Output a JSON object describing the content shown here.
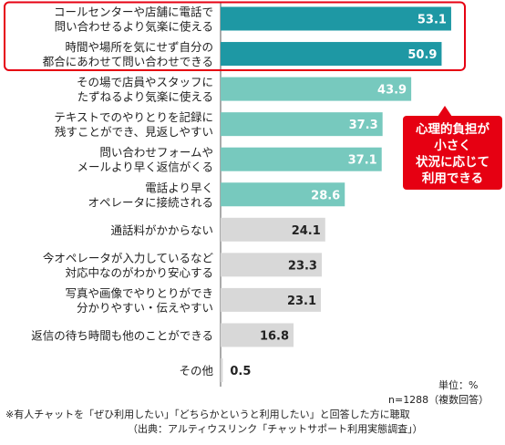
{
  "chart_data": {
    "type": "bar",
    "orientation": "horizontal",
    "categories": [
      [
        "コールセンターや店舗に電話で",
        "問い合わせるより気楽に使える"
      ],
      [
        "時間や場所を気にせず自分の",
        "都合にあわせて問い合わせできる"
      ],
      [
        "その場で店員やスタッフに",
        "たずねるより気楽に使える"
      ],
      [
        "テキストでのやりとりを記録に",
        "残すことができ、見返しやすい"
      ],
      [
        "問い合わせフォームや",
        "メールより早く返信がくる"
      ],
      [
        "電話より早く",
        "オペレータに接続される"
      ],
      [
        "通話料がかからない"
      ],
      [
        "今オペレータが入力しているなど",
        "対応中なのがわかり安心する"
      ],
      [
        "写真や画像でやりとりができ",
        "分かりやすい・伝えやすい"
      ],
      [
        "返信の待ち時間も他のことができる"
      ],
      [
        "その他"
      ]
    ],
    "values": [
      53.1,
      50.9,
      43.9,
      37.3,
      37.1,
      28.6,
      24.1,
      23.3,
      23.1,
      16.8,
      0.5
    ],
    "value_labels": [
      "53.1",
      "50.9",
      "43.9",
      "37.3",
      "37.1",
      "28.6",
      "24.1",
      "23.3",
      "23.1",
      "16.8",
      "0.5"
    ],
    "xlim": [
      0,
      55
    ],
    "colors": {
      "dark_teal": "#1e98a4",
      "light_teal": "#77c9be",
      "gray": "#d8d8d8",
      "highlight_red": "#e60012"
    },
    "bar_color_groups": [
      "dark_teal",
      "dark_teal",
      "light_teal",
      "light_teal",
      "light_teal",
      "light_teal",
      "gray",
      "gray",
      "gray",
      "gray",
      "gray"
    ],
    "annotation": {
      "lines": [
        "心理的負担が",
        "小さく",
        "状況に応じて",
        "利用できる"
      ]
    }
  },
  "notes": {
    "unit": "単位：%",
    "n": "n=1288（複数回答）",
    "footnote": "※有人チャットを「ぜひ利用したい」「どちらかというと利用したい」と回答した方に聴取",
    "source": "（出典：アルティウスリンク「チャットサポート利用実態調査」）"
  }
}
